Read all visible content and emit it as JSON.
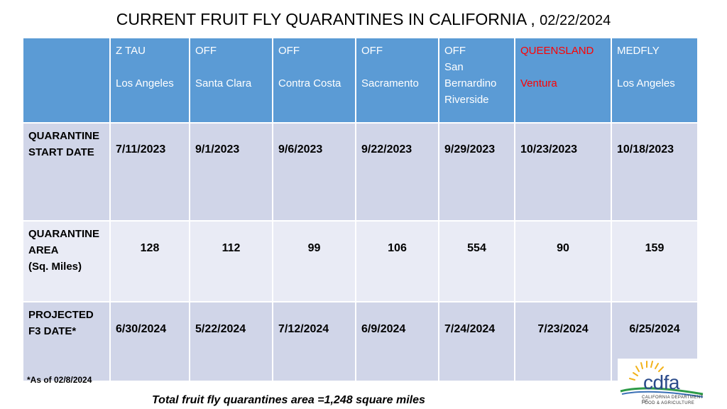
{
  "title": "CURRENT FRUIT FLY QUARANTINES IN CALIFORNIA",
  "title_sep": " , ",
  "title_date": "02/22/2024",
  "columns": [
    {
      "type": "Z TAU",
      "county_lines": [
        "",
        "Los Angeles"
      ]
    },
    {
      "type": "OFF",
      "county_lines": [
        "",
        "Santa Clara"
      ]
    },
    {
      "type": "OFF",
      "county_lines": [
        "",
        "Contra Costa"
      ]
    },
    {
      "type": "OFF",
      "county_lines": [
        "",
        "Sacramento"
      ]
    },
    {
      "type": "OFF",
      "county_lines": [
        "San",
        "Bernardino",
        "Riverside"
      ]
    },
    {
      "type": "QUEENSLAND",
      "county_lines": [
        "",
        "Ventura"
      ],
      "highlight_color": "#ff0000"
    },
    {
      "type": "MEDFLY",
      "county_lines": [
        "",
        "Los Angeles"
      ]
    }
  ],
  "rows": [
    {
      "label_lines": [
        "QUARANTINE",
        "START DATE"
      ],
      "values": [
        "7/11/2023",
        "9/1/2023",
        "9/6/2023",
        "9/22/2023",
        "9/29/2023",
        "10/23/2023",
        "10/18/2023"
      ]
    },
    {
      "label_lines": [
        "QUARANTINE",
        "AREA",
        "(Sq. Miles)"
      ],
      "values": [
        "128",
        "112",
        "99",
        "106",
        "554",
        "90",
        "159"
      ]
    },
    {
      "label_lines": [
        "PROJECTED",
        "F3 DATE*"
      ],
      "values": [
        "6/30/2024",
        "5/22/2024",
        "7/12/2024",
        "6/9/2024",
        "7/24/2024",
        "7/23/2024",
        "6/25/2024"
      ]
    }
  ],
  "footnote": "*As of 02/8/2024",
  "total_text": "Total fruit fly quarantines area =1,248 square miles",
  "logo": {
    "text": "cdfa",
    "sub1": "CALIFORNIA DEPARTMENT OF",
    "sub2": "FOOD & AGRICULTURE"
  },
  "colors": {
    "header_bg": "#5b9bd5",
    "row_dark": "#d0d5e8",
    "row_light": "#e9ebf5",
    "highlight": "#ff0000"
  }
}
